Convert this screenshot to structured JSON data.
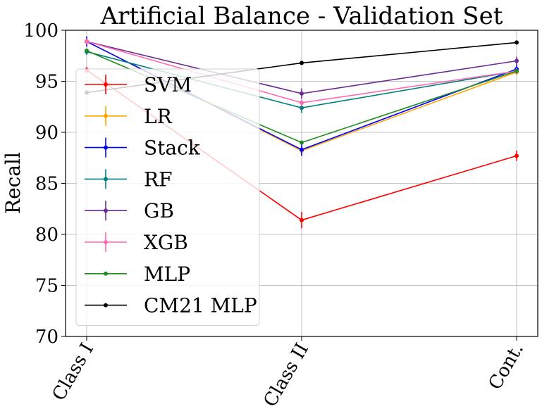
{
  "chart_data": {
    "type": "line",
    "title": "Artificial Balance - Validation Set",
    "xlabel": "",
    "ylabel": "Recall",
    "categories": [
      "Class I",
      "Class II",
      "Cont."
    ],
    "ylim": [
      70,
      100
    ],
    "yticks": [
      70,
      75,
      80,
      85,
      90,
      95,
      100
    ],
    "grid": true,
    "legend_position": "left",
    "series": [
      {
        "name": "SVM",
        "color": "#ff0000",
        "values": [
          96.1,
          81.4,
          87.7
        ],
        "errors": [
          0.3,
          0.8,
          0.5
        ]
      },
      {
        "name": "LR",
        "color": "#ffa500",
        "values": [
          98.9,
          88.2,
          95.9
        ],
        "errors": [
          0.4,
          0.5,
          0.3
        ]
      },
      {
        "name": "Stack",
        "color": "#0000ff",
        "values": [
          98.9,
          88.3,
          96.2
        ],
        "errors": [
          0.5,
          0.6,
          0.4
        ]
      },
      {
        "name": "RF",
        "color": "#008080",
        "values": [
          97.9,
          92.4,
          96.0
        ],
        "errors": [
          0.3,
          0.5,
          0.3
        ]
      },
      {
        "name": "GB",
        "color": "#6a2c91",
        "values": [
          98.9,
          93.8,
          97.0
        ],
        "errors": [
          0.3,
          0.5,
          0.4
        ]
      },
      {
        "name": "XGB",
        "color": "#ff69b4",
        "values": [
          98.9,
          92.9,
          96.0
        ],
        "errors": [
          0.3,
          0.3,
          0.3
        ]
      },
      {
        "name": "MLP",
        "color": "#228b22",
        "values": [
          98.0,
          89.0,
          96.0
        ],
        "errors": [
          0,
          0,
          0
        ]
      },
      {
        "name": "CM21 MLP",
        "color": "#000000",
        "values": [
          93.9,
          96.8,
          98.8
        ],
        "errors": [
          0,
          0,
          0
        ]
      }
    ]
  }
}
